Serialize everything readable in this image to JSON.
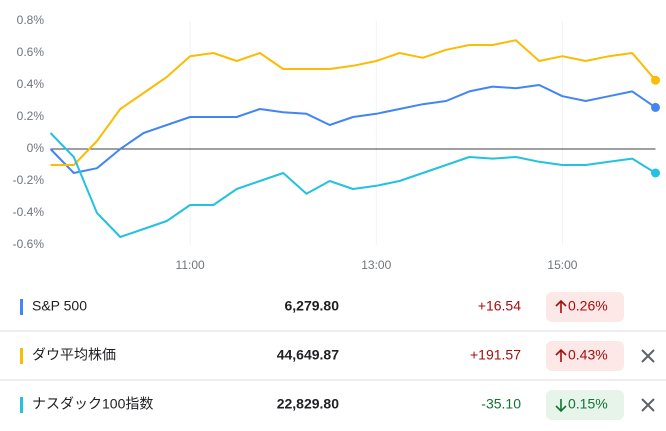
{
  "chart_data": {
    "type": "line",
    "x": [
      9.5,
      9.75,
      10,
      10.25,
      10.5,
      10.75,
      11,
      11.25,
      11.5,
      11.75,
      12,
      12.25,
      12.5,
      12.75,
      13,
      13.25,
      13.5,
      13.75,
      14,
      14.25,
      14.5,
      14.75,
      15,
      15.25,
      15.5,
      15.75,
      16
    ],
    "xlim": [
      9.5,
      16
    ],
    "xticks": [
      {
        "value": 11,
        "label": "11:00"
      },
      {
        "value": 13,
        "label": "13:00"
      },
      {
        "value": 15,
        "label": "15:00"
      }
    ],
    "ylim": [
      -0.6,
      0.8
    ],
    "yticks": [
      {
        "value": 0.8,
        "label": "0.8%"
      },
      {
        "value": 0.6,
        "label": "0.6%"
      },
      {
        "value": 0.4,
        "label": "0.4%"
      },
      {
        "value": 0.2,
        "label": "0.2%"
      },
      {
        "value": 0,
        "label": "0%"
      },
      {
        "value": -0.2,
        "label": "-0.2%"
      },
      {
        "value": -0.4,
        "label": "-0.4%"
      },
      {
        "value": -0.6,
        "label": "-0.6%"
      }
    ],
    "series": [
      {
        "name": "S&P 500",
        "color": "#4285f4",
        "values": [
          0,
          -0.15,
          -0.12,
          0,
          0.1,
          0.15,
          0.2,
          0.2,
          0.2,
          0.25,
          0.23,
          0.22,
          0.15,
          0.2,
          0.22,
          0.25,
          0.28,
          0.3,
          0.36,
          0.39,
          0.38,
          0.4,
          0.33,
          0.3,
          0.33,
          0.36,
          0.26
        ]
      },
      {
        "name": "ダウ平均株価",
        "color": "#fbbc04",
        "values": [
          -0.1,
          -0.1,
          0.05,
          0.25,
          0.35,
          0.45,
          0.58,
          0.6,
          0.55,
          0.6,
          0.5,
          0.5,
          0.5,
          0.52,
          0.55,
          0.6,
          0.57,
          0.62,
          0.65,
          0.65,
          0.68,
          0.55,
          0.58,
          0.55,
          0.58,
          0.6,
          0.43
        ]
      },
      {
        "name": "ナスダック100指数",
        "color": "#24c1e0",
        "values": [
          0.1,
          -0.05,
          -0.4,
          -0.55,
          -0.5,
          -0.45,
          -0.35,
          -0.35,
          -0.25,
          -0.2,
          -0.15,
          -0.28,
          -0.2,
          -0.25,
          -0.23,
          -0.2,
          -0.15,
          -0.1,
          -0.05,
          -0.06,
          -0.05,
          -0.08,
          -0.1,
          -0.1,
          -0.08,
          -0.06,
          -0.15
        ]
      }
    ]
  },
  "table": {
    "rows": [
      {
        "price": "6,279.80",
        "change": "+16.54",
        "percent": "0.26%"
      },
      {
        "price": "44,649.87",
        "change": "+191.57",
        "percent": "0.43%"
      },
      {
        "price": "22,829.80",
        "change": "-35.10",
        "percent": "0.15%"
      }
    ]
  }
}
